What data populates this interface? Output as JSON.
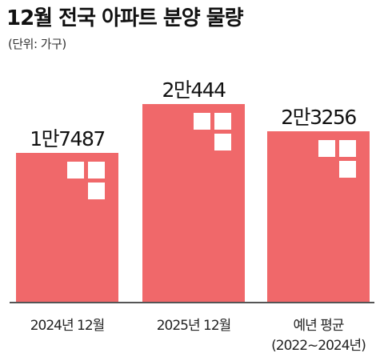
{
  "title": "12월 전국 아파트 분양 물량",
  "unit_label": "(단위: 가구)",
  "colors": {
    "bar": "#f0686a",
    "baseline": "#555555",
    "icon": "#ffffff"
  },
  "chart_data": {
    "type": "bar",
    "categories": [
      "2024년 12월",
      "2025년 12월",
      "예년 평균\n(2022~2024년)"
    ],
    "values": [
      17487,
      20444,
      23256
    ],
    "value_labels": [
      "1만7487",
      "2만444",
      "2만3256"
    ],
    "unit": "가구",
    "grid": false,
    "legend": "none"
  }
}
